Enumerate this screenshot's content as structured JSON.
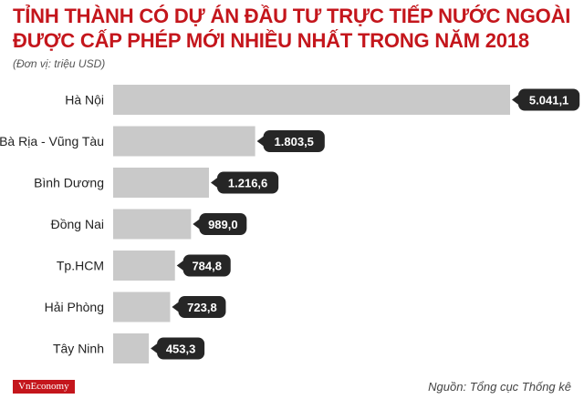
{
  "header": {
    "title": "TỈNH THÀNH CÓ DỰ ÁN ĐẦU TƯ TRỰC TIẾP NƯỚC NGOÀI ĐƯỢC CẤP PHÉP MỚI NHIỀU NHẤT TRONG NĂM 2018",
    "unit": "(Đơn vị: triệu USD)"
  },
  "footer": {
    "brand": "VnEconomy",
    "source": "Nguồn: Tổng cục Thống kê"
  },
  "colors": {
    "title": "#c4161c",
    "bar": "#c9c9c9",
    "value_bubble": "#262626"
  },
  "chart_data": {
    "type": "bar",
    "orientation": "horizontal",
    "title": "TỈNH THÀNH CÓ DỰ ÁN ĐẦU TƯ TRỰC TIẾP NƯỚC NGOÀI ĐƯỢC CẤP PHÉP MỚI NHIỀU NHẤT TRONG NĂM 2018",
    "unit": "(Đơn vị: triệu USD)",
    "categories": [
      "Hà Nội",
      "Bà Rịa - Vũng Tàu",
      "Bình Dương",
      "Đồng Nai",
      "Tp.HCM",
      "Hải Phòng",
      "Tây Ninh"
    ],
    "values": [
      5041.1,
      1803.5,
      1216.6,
      989.0,
      784.8,
      723.8,
      453.3
    ],
    "value_labels": [
      "5.041,1",
      "1.803,5",
      "1.216,6",
      "989,0",
      "784,8",
      "723,8",
      "453,3"
    ],
    "xlim": [
      0,
      5041.1
    ],
    "grid": false,
    "legend": "none"
  }
}
